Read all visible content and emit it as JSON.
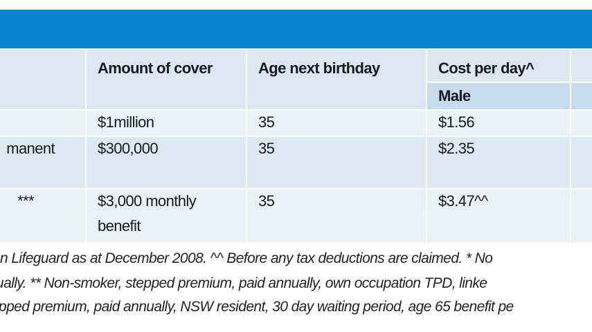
{
  "table": {
    "headers": {
      "amount": "Amount of cover",
      "age": "Age next birthday",
      "cost": "Cost per day^",
      "male": "Male"
    },
    "rows": [
      {
        "label": "",
        "amount": "$1million",
        "age": "35",
        "cost": "$1.56"
      },
      {
        "label": "manent",
        "amount": "$300,000",
        "age": "35",
        "cost": "$2.35"
      },
      {
        "label": "***",
        "amount": "$3,000 monthly",
        "amount2": "benefit",
        "age": "35",
        "cost": "$3.47^^"
      }
    ]
  },
  "notes": {
    "line1": "n Lifeguard as at December 2008.  ^^ Before any tax deductions are claimed.  * No",
    "line2": "ually.  ** Non-smoker, stepped premium, paid annually, own occupation TPD, linke",
    "line3": "pped premium, paid annually, NSW resident, 30 day waiting period, age 65 benefit pe"
  }
}
